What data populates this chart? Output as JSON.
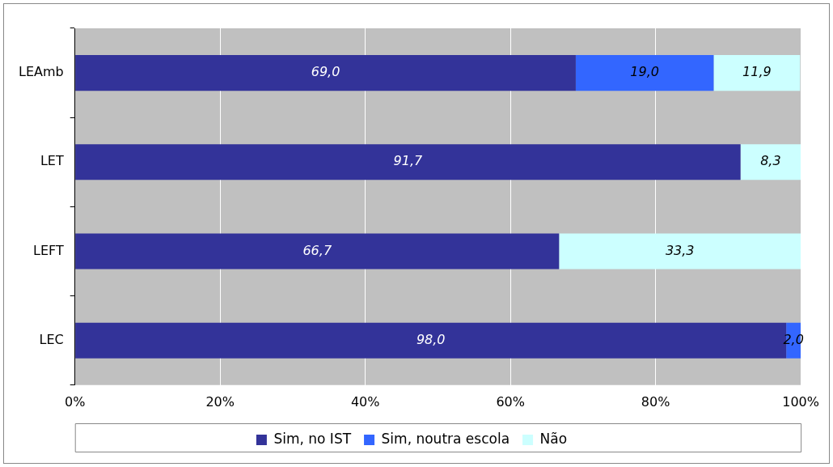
{
  "chart_data": {
    "type": "bar",
    "orientation": "horizontal",
    "stacked": true,
    "categories": [
      "LEAmb",
      "LET",
      "LEFT",
      "LEC"
    ],
    "series": [
      {
        "name": "Sim, no IST",
        "color": "#333399",
        "values": [
          69.0,
          91.7,
          66.7,
          98.0
        ],
        "value_labels": [
          "69,0",
          "91,7",
          "66,7",
          "98,0"
        ]
      },
      {
        "name": "Sim, noutra escola",
        "color": "#3366ff",
        "values": [
          19.0,
          null,
          null,
          2.0
        ],
        "value_labels": [
          "19,0",
          null,
          null,
          "2,0"
        ]
      },
      {
        "name": "Não",
        "color": "#ccffff",
        "values": [
          11.9,
          8.3,
          33.3,
          null
        ],
        "value_labels": [
          "11,9",
          "8,3",
          "33,3",
          null
        ]
      }
    ],
    "xlim": [
      0,
      100
    ],
    "xticks": [
      {
        "value": 0,
        "label": "0%"
      },
      {
        "value": 20,
        "label": "20%"
      },
      {
        "value": 40,
        "label": "40%"
      },
      {
        "value": 60,
        "label": "60%"
      },
      {
        "value": 80,
        "label": "80%"
      },
      {
        "value": 100,
        "label": "100%"
      }
    ],
    "grid": "x",
    "legend": "bottom"
  }
}
